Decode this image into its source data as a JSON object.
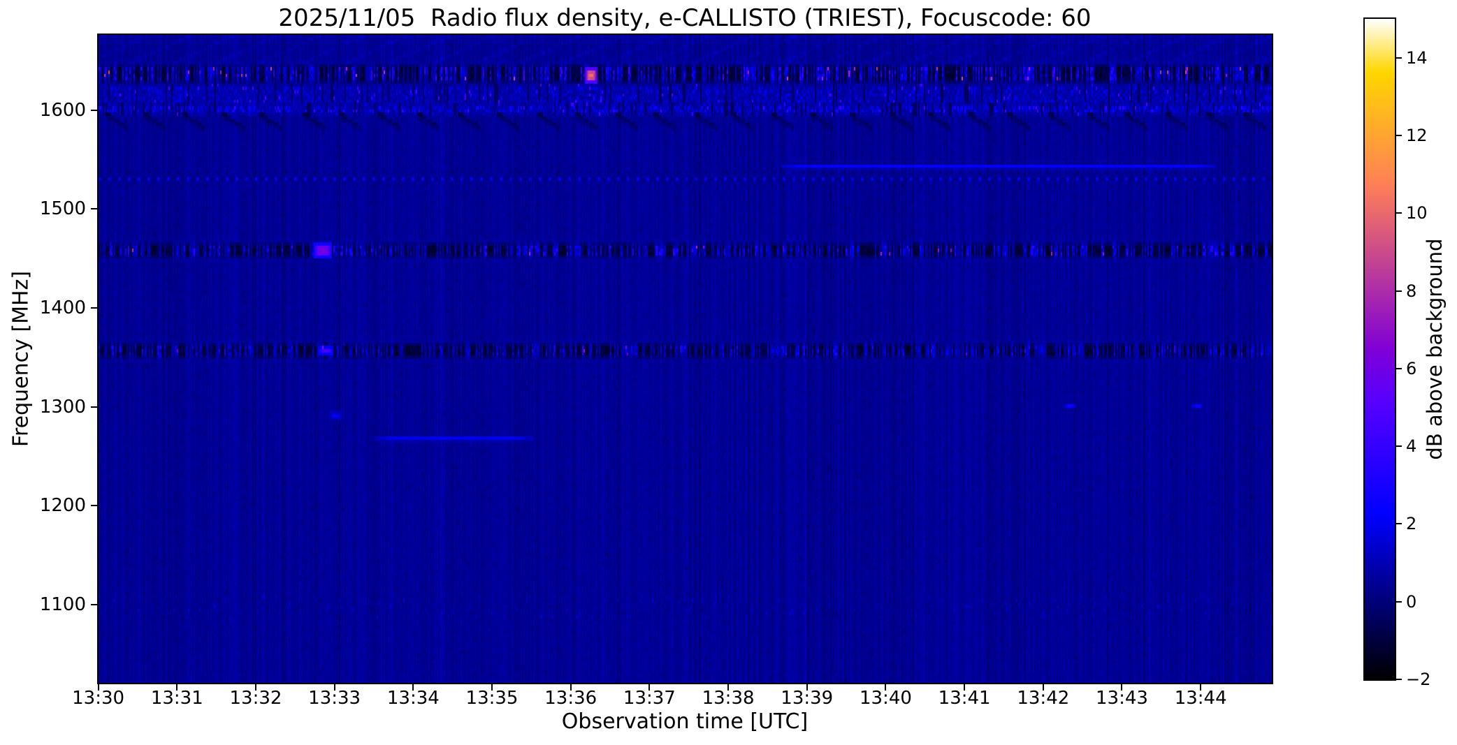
{
  "title": "2025/11/05  Radio flux density, e-CALLISTO (TRIEST), Focuscode: 60",
  "axes": {
    "xlabel": "Observation time [UTC]",
    "ylabel": "Frequency [MHz]",
    "x_tick_labels": [
      "13:30",
      "13:31",
      "13:32",
      "13:33",
      "13:34",
      "13:35",
      "13:36",
      "13:37",
      "13:38",
      "13:39",
      "13:40",
      "13:41",
      "13:42",
      "13:43",
      "13:44"
    ],
    "x_tick_seconds": [
      0,
      60,
      120,
      180,
      240,
      300,
      360,
      420,
      480,
      540,
      600,
      660,
      720,
      780,
      840
    ],
    "y_tick_labels": [
      "1600",
      "1500",
      "1400",
      "1300",
      "1200",
      "1100"
    ],
    "y_tick_values": [
      1600,
      1500,
      1400,
      1300,
      1200,
      1100
    ],
    "x_range": [
      "13:30:00",
      "13:44:54"
    ],
    "y_range_mhz": [
      1021,
      1676
    ]
  },
  "colorbar": {
    "label": "dB above background",
    "tick_labels": [
      "14",
      "12",
      "10",
      "8",
      "6",
      "4",
      "2",
      "0",
      "−2"
    ],
    "tick_values": [
      14,
      12,
      10,
      8,
      6,
      4,
      2,
      0,
      -2
    ],
    "range_db": [
      -2,
      15
    ],
    "colormap": "gnuplot2"
  },
  "chart_data": {
    "type": "heatmap",
    "title": "2025/11/05  Radio flux density, e-CALLISTO (TRIEST), Focuscode: 60",
    "instrument": "e-CALLISTO (TRIEST)",
    "focuscode": "60",
    "date": "2025/11/05",
    "xlabel": "Observation time [UTC]",
    "ylabel": "Frequency [MHz]",
    "zlabel": "dB above background",
    "x_range": [
      "13:30:00",
      "13:44:54"
    ],
    "y_range_mhz": [
      1021,
      1676
    ],
    "z_range_db": [
      -2,
      15
    ],
    "colormap": "gnuplot2",
    "background_db": 0.4,
    "grid": false,
    "bands": [
      {
        "name": "top-edge-texture",
        "type": "diagonal_texture",
        "freq_from_mhz": 1650,
        "freq_to_mhz": 1676,
        "db": 0.9
      },
      {
        "name": "rfi-band-1638",
        "type": "dense_rfi",
        "freq_from_mhz": 1630,
        "freq_to_mhz": 1646,
        "max_db": 5.5,
        "hot_db": 7.5,
        "hot_prob": 0.012
      },
      {
        "name": "speckle-band-1615",
        "type": "speckle_line",
        "freq_from_mhz": 1608,
        "freq_to_mhz": 1628,
        "max_db": 2.0
      },
      {
        "name": "line-1602",
        "type": "speckle_line",
        "freq_from_mhz": 1598,
        "freq_to_mhz": 1606,
        "max_db": 3.2
      },
      {
        "name": "dark-diagonal-sweeps-1590",
        "type": "dark_diagonals",
        "freq_from_mhz": 1580,
        "freq_to_mhz": 1598,
        "period_s": 30
      },
      {
        "name": "faint-line-1547",
        "type": "faint_line",
        "freq_from_mhz": 1546,
        "freq_to_mhz": 1549,
        "db": 1.5,
        "time_from": "13:38:40",
        "time_to": "13:44:10"
      },
      {
        "name": "dotted-line-1532",
        "type": "dotted_line",
        "freq_from_mhz": 1531,
        "freq_to_mhz": 1534,
        "db": 1.7,
        "period_s": 7.5
      },
      {
        "name": "rfi-band-1460",
        "type": "dense_rfi",
        "freq_from_mhz": 1452,
        "freq_to_mhz": 1467,
        "max_db": 4.8,
        "hot_db": 6.5,
        "hot_prob": 0.006
      },
      {
        "name": "rfi-band-1359",
        "type": "dense_rfi",
        "freq_from_mhz": 1353,
        "freq_to_mhz": 1365,
        "max_db": 4.2,
        "hot_db": 5.5,
        "hot_prob": 0.004
      },
      {
        "name": "faint-line-1272",
        "type": "faint_line",
        "freq_from_mhz": 1270,
        "freq_to_mhz": 1274,
        "db": 1.1,
        "time_from": "13:33:30",
        "time_to": "13:35:30"
      },
      {
        "name": "faint-dotted-band-1098",
        "type": "faint_dotted_band",
        "freq_from_mhz": 1090,
        "freq_to_mhz": 1108,
        "db": 1.0,
        "period_s": 10
      }
    ],
    "bursts": [
      {
        "name": "strongest-rfi-burst",
        "time": "13:36:15",
        "freq_mhz": 1636,
        "width_s": 8,
        "height_mhz": 16,
        "peak_db": 10.5
      },
      {
        "name": "burst-1459",
        "time": "13:32:50",
        "freq_mhz": 1459,
        "width_s": 13,
        "height_mhz": 10,
        "peak_db": 6.5
      },
      {
        "name": "burst-1359",
        "time": "13:32:52",
        "freq_mhz": 1359,
        "width_s": 10,
        "height_mhz": 8,
        "peak_db": 5.0
      },
      {
        "name": "blob-1292",
        "time": "13:33:00",
        "freq_mhz": 1292,
        "width_s": 8,
        "height_mhz": 6,
        "peak_db": 2.3
      },
      {
        "name": "dash-1303-a",
        "time": "13:42:20",
        "freq_mhz": 1303,
        "width_s": 8,
        "height_mhz": 3,
        "peak_db": 2.6
      },
      {
        "name": "dash-1303-b",
        "time": "13:43:56",
        "freq_mhz": 1303,
        "width_s": 8,
        "height_mhz": 3,
        "peak_db": 2.6
      }
    ]
  }
}
